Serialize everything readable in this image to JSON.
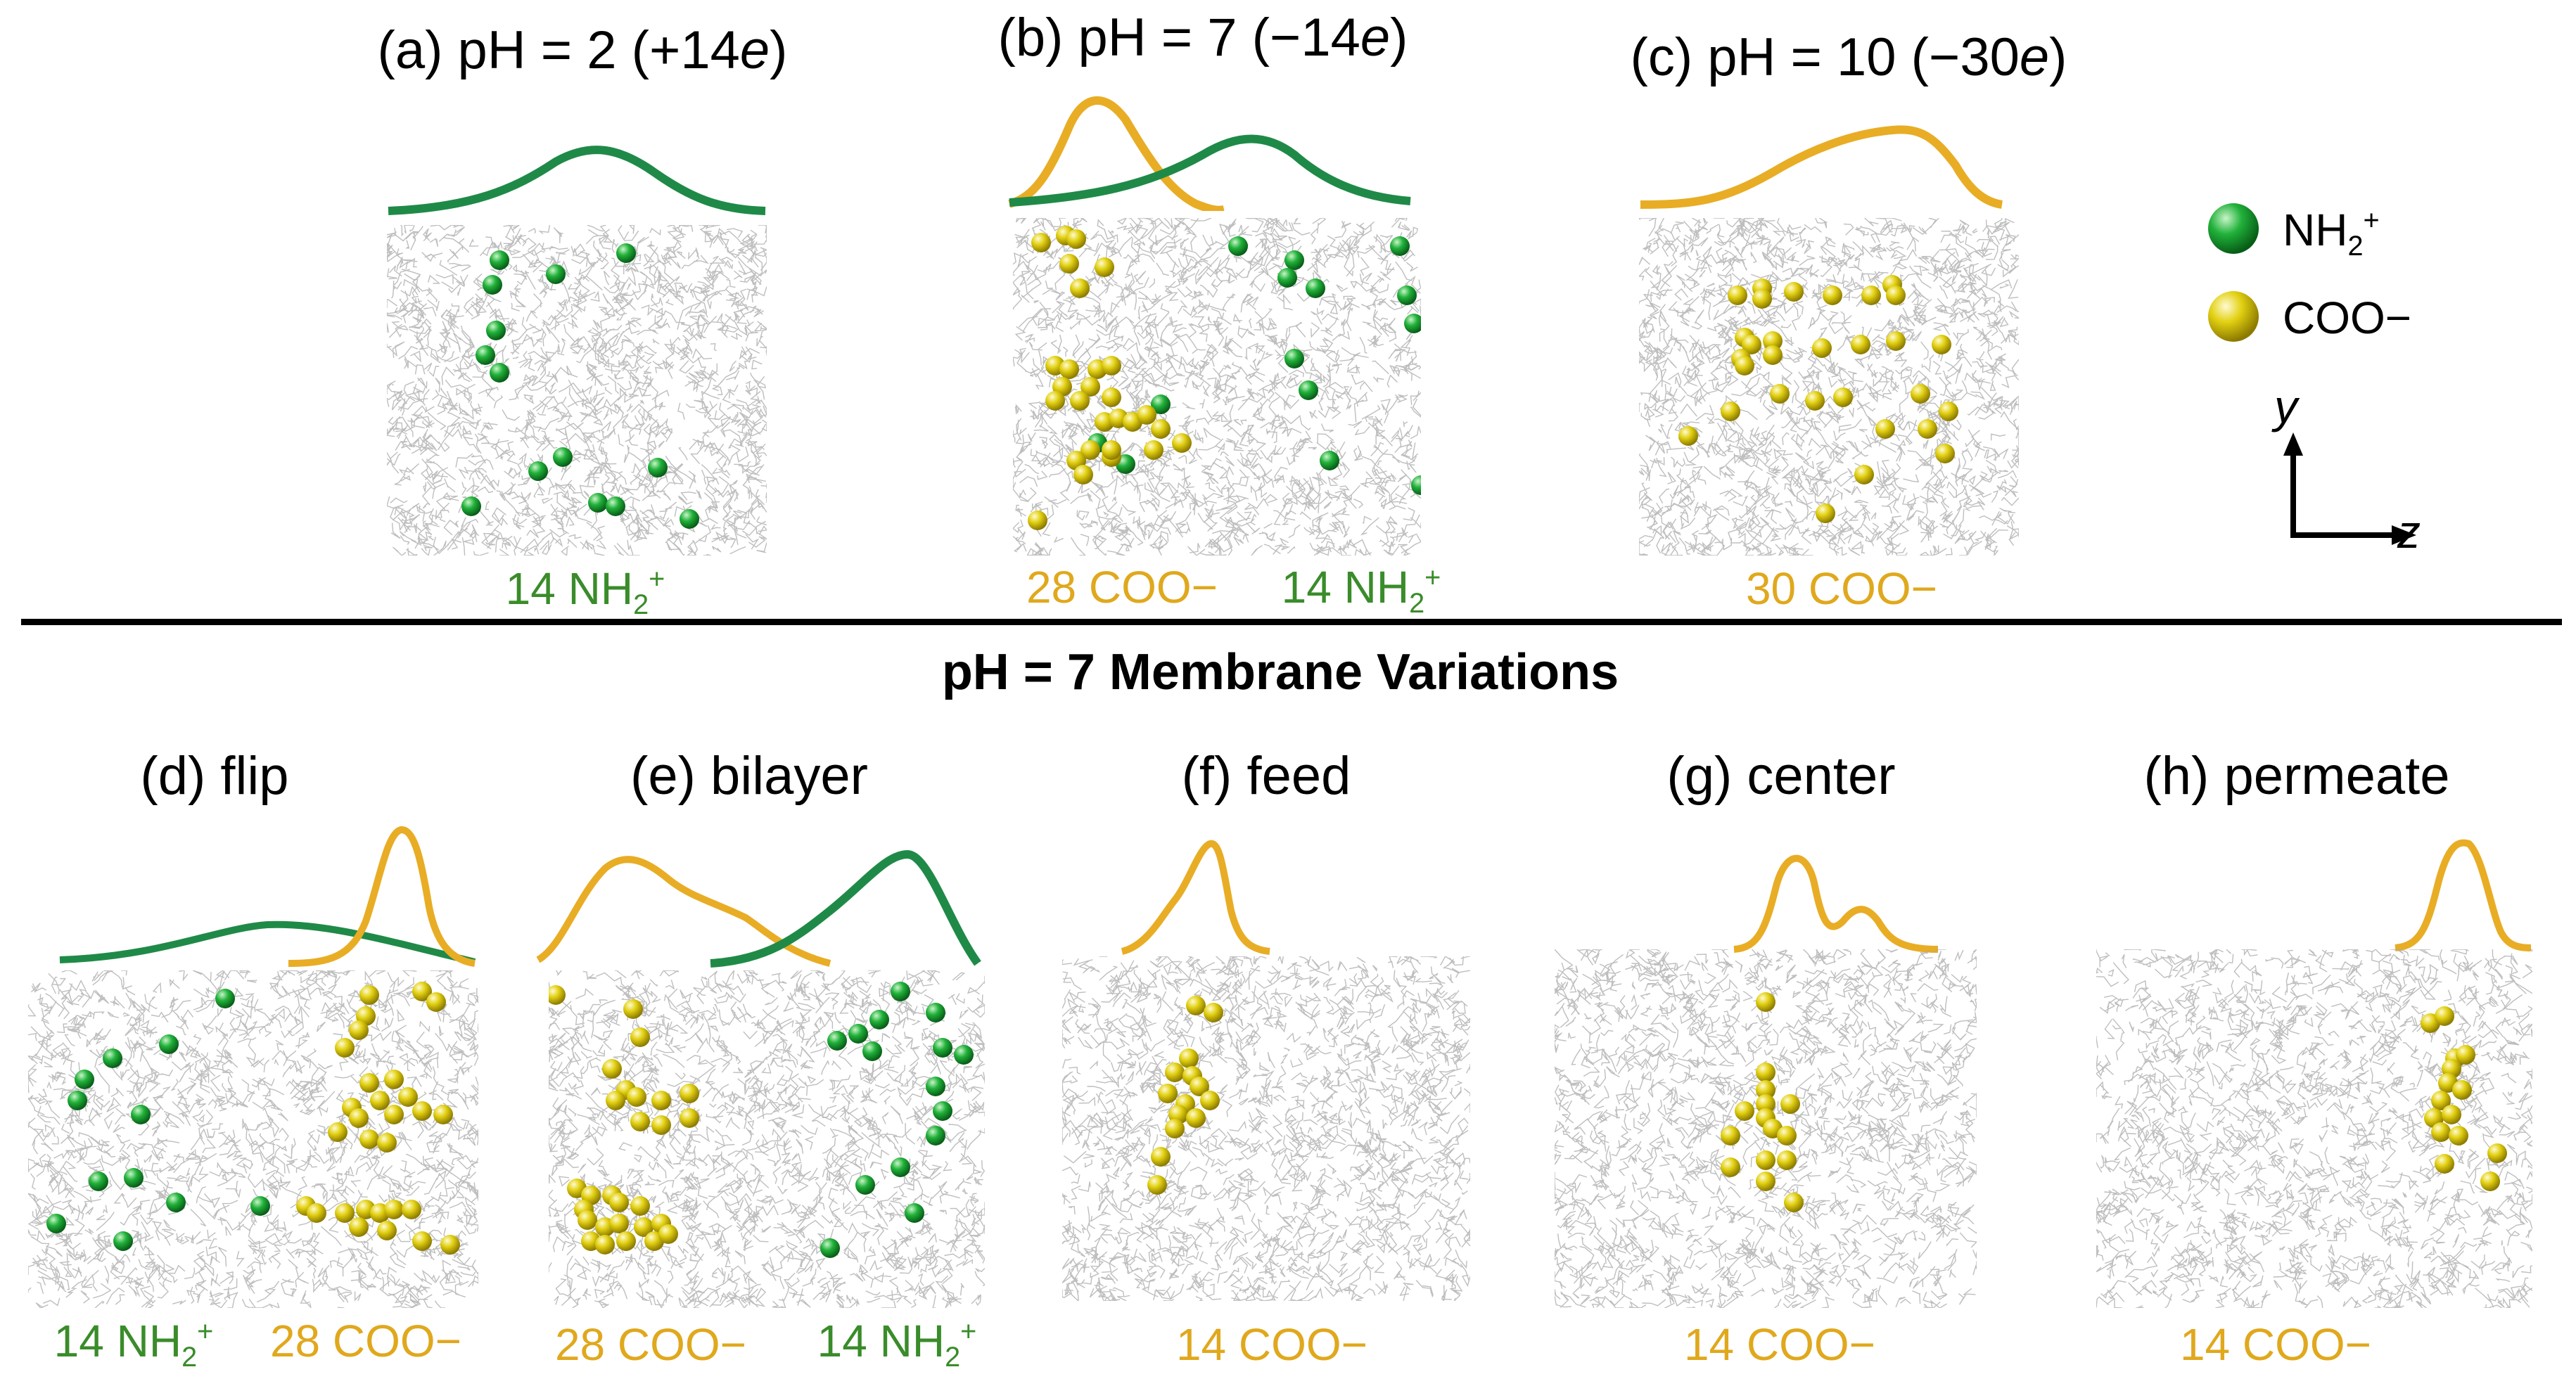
{
  "panels_top": [
    {
      "id": "a",
      "title_prefix": "(a) pH = 2 (+14",
      "title_e": "e",
      "title_suffix": ")",
      "caption_left": "",
      "caption_right": "14 NH",
      "green_count": 14,
      "yellow_count": 0
    },
    {
      "id": "b",
      "title_prefix": "(b) pH = 7 (−14",
      "title_e": "e",
      "title_suffix": ")",
      "caption_left": "28 COO−",
      "caption_right": "14 NH",
      "green_count": 14,
      "yellow_count": 28
    },
    {
      "id": "c",
      "title_prefix": "(c) pH = 10 (−30",
      "title_e": "e",
      "title_suffix": ")",
      "caption_left": "30 COO−",
      "caption_right": "",
      "green_count": 0,
      "yellow_count": 30
    }
  ],
  "section_title": "pH = 7 Membrane Variations",
  "panels_bottom": [
    {
      "id": "d",
      "title": "(d) flip",
      "caption_left": "14 NH",
      "caption_right": "28 COO−"
    },
    {
      "id": "e",
      "title": "(e) bilayer",
      "caption_left": "28 COO−",
      "caption_right": "14 NH"
    },
    {
      "id": "f",
      "title": "(f) feed",
      "caption_left": "14 COO−",
      "caption_right": ""
    },
    {
      "id": "g",
      "title": "(g) center",
      "caption_left": "14 COO−",
      "caption_right": ""
    },
    {
      "id": "h",
      "title": "(h) permeate",
      "caption_left": "14 COO−",
      "caption_right": ""
    }
  ],
  "legend": {
    "green_label": "NH",
    "green_sub": "2",
    "green_sup": "+",
    "yellow_label": "COO−",
    "axis_y": "y",
    "axis_z": "z"
  },
  "caption_sub": "2",
  "caption_sup": "+",
  "colors": {
    "green": "#1f9a3a",
    "gold": "#e8ad25",
    "caption_green": "#3a8c2a",
    "caption_gold": "#e0a81d",
    "membrane": "#9a9a9a"
  }
}
